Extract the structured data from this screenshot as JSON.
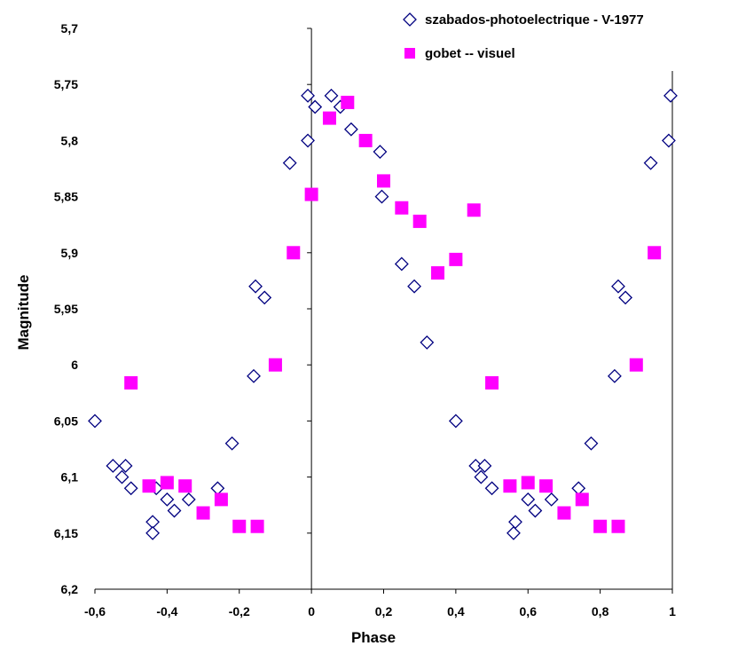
{
  "chart_data": {
    "type": "scatter",
    "xlabel": "Phase",
    "ylabel": "Magnitude",
    "xlim": [
      -0.6,
      1
    ],
    "ylim": [
      5.7,
      6.2
    ],
    "y_inverted": true,
    "x_ticks": [
      "-0,6",
      "-0,4",
      "-0,2",
      "0",
      "0,2",
      "0,4",
      "0,6",
      "0,8",
      "1"
    ],
    "y_ticks": [
      "5,7",
      "5,75",
      "5,8",
      "5,85",
      "5,9",
      "5,95",
      "6",
      "6,05",
      "6,1",
      "6,15",
      "6,2"
    ],
    "legend_position": "top-right",
    "grid": false,
    "series": [
      {
        "name": "szabados-photoelectrique - V-1977",
        "marker": "diamond-open",
        "color": "#000080",
        "points": [
          [
            -0.6,
            6.05
          ],
          [
            -0.55,
            6.09
          ],
          [
            -0.525,
            6.1
          ],
          [
            -0.515,
            6.09
          ],
          [
            -0.5,
            6.11
          ],
          [
            -0.44,
            6.14
          ],
          [
            -0.44,
            6.15
          ],
          [
            -0.43,
            6.11
          ],
          [
            -0.4,
            6.12
          ],
          [
            -0.38,
            6.13
          ],
          [
            -0.34,
            6.12
          ],
          [
            -0.26,
            6.11
          ],
          [
            -0.22,
            6.07
          ],
          [
            -0.16,
            6.01
          ],
          [
            -0.155,
            5.93
          ],
          [
            -0.13,
            5.94
          ],
          [
            -0.06,
            5.82
          ],
          [
            -0.01,
            5.8
          ],
          [
            -0.01,
            5.76
          ],
          [
            0.01,
            5.77
          ],
          [
            0.055,
            5.76
          ],
          [
            0.08,
            5.77
          ],
          [
            0.11,
            5.79
          ],
          [
            0.19,
            5.81
          ],
          [
            0.195,
            5.85
          ],
          [
            0.25,
            5.91
          ],
          [
            0.285,
            5.93
          ],
          [
            0.32,
            5.98
          ],
          [
            0.4,
            6.05
          ],
          [
            0.455,
            6.09
          ],
          [
            0.47,
            6.1
          ],
          [
            0.48,
            6.09
          ],
          [
            0.5,
            6.11
          ],
          [
            0.565,
            6.14
          ],
          [
            0.56,
            6.15
          ],
          [
            0.6,
            6.12
          ],
          [
            0.62,
            6.13
          ],
          [
            0.665,
            6.12
          ],
          [
            0.74,
            6.11
          ],
          [
            0.775,
            6.07
          ],
          [
            0.84,
            6.01
          ],
          [
            0.85,
            5.93
          ],
          [
            0.87,
            5.94
          ],
          [
            0.94,
            5.82
          ],
          [
            0.99,
            5.8
          ],
          [
            0.995,
            5.76
          ]
        ]
      },
      {
        "name": "gobet -- visuel",
        "marker": "square-filled",
        "color": "#ff00ff",
        "points": [
          [
            -0.5,
            6.016
          ],
          [
            -0.45,
            6.108
          ],
          [
            -0.4,
            6.105
          ],
          [
            -0.35,
            6.108
          ],
          [
            -0.3,
            6.132
          ],
          [
            -0.25,
            6.12
          ],
          [
            -0.2,
            6.144
          ],
          [
            -0.15,
            6.144
          ],
          [
            -0.1,
            6.0
          ],
          [
            -0.05,
            5.9
          ],
          [
            0.0,
            5.848
          ],
          [
            0.05,
            5.78
          ],
          [
            0.1,
            5.766
          ],
          [
            0.15,
            5.8
          ],
          [
            0.2,
            5.836
          ],
          [
            0.25,
            5.86
          ],
          [
            0.3,
            5.872
          ],
          [
            0.35,
            5.918
          ],
          [
            0.4,
            5.906
          ],
          [
            0.45,
            5.862
          ],
          [
            0.5,
            6.016
          ],
          [
            0.55,
            6.108
          ],
          [
            0.6,
            6.105
          ],
          [
            0.65,
            6.108
          ],
          [
            0.7,
            6.132
          ],
          [
            0.75,
            6.12
          ],
          [
            0.8,
            6.144
          ],
          [
            0.85,
            6.144
          ],
          [
            0.9,
            6.0
          ],
          [
            0.95,
            5.9
          ]
        ]
      }
    ]
  }
}
